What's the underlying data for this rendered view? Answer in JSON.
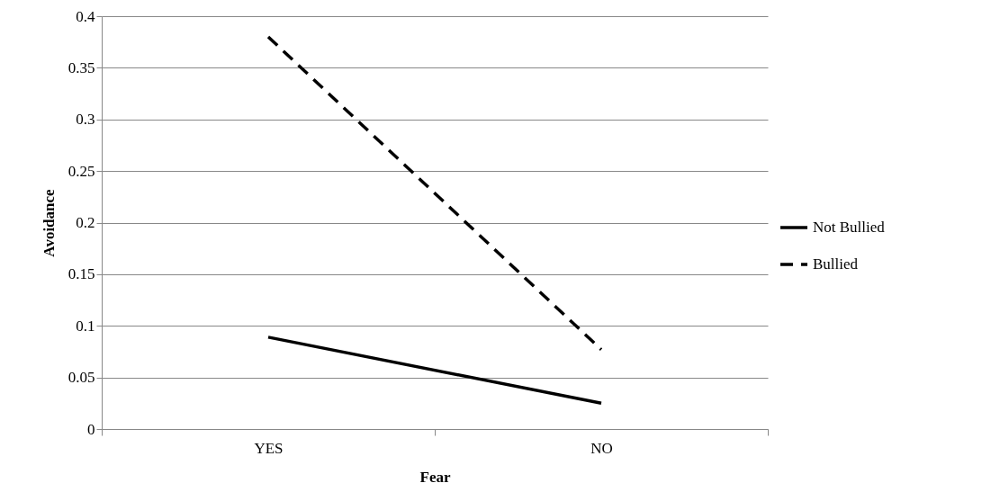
{
  "chart_data": {
    "type": "line",
    "xlabel": "Fear",
    "ylabel": "Avoidance",
    "categories": [
      "YES",
      "NO"
    ],
    "series": [
      {
        "name": "Not Bullied",
        "color": "#000000",
        "line_style": "solid",
        "values": [
          0.089,
          0.025
        ]
      },
      {
        "name": "Bullied",
        "color": "#000000",
        "line_style": "dashed",
        "values": [
          0.38,
          0.077
        ]
      }
    ],
    "ylim": [
      0,
      0.4
    ],
    "yticks": [
      0,
      0.05,
      0.1,
      0.15,
      0.2,
      0.25,
      0.3,
      0.35,
      0.4
    ],
    "grid": "y",
    "legend": "right"
  }
}
